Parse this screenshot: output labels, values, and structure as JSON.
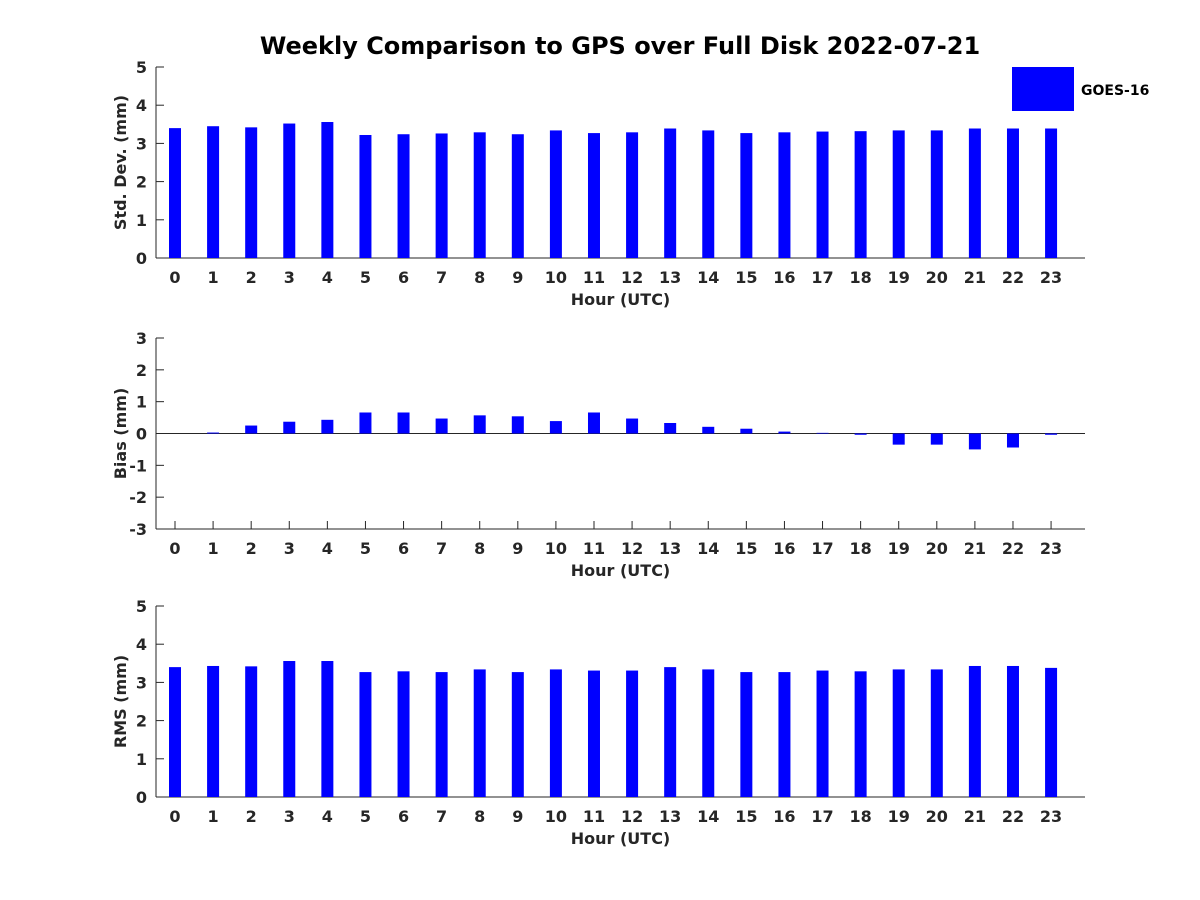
{
  "chart_data": {
    "title": "Weekly Comparison to GPS over Full Disk 2022-07-21",
    "legend": {
      "label": "GOES-16",
      "color": "#0000ff",
      "placement": "top-right"
    },
    "panels": [
      {
        "type": "bar",
        "xlabel": "Hour (UTC)",
        "ylabel": "Std. Dev. (mm)",
        "ylim": [
          0,
          5
        ],
        "yticks": [
          "0",
          "1",
          "2",
          "3",
          "4",
          "5"
        ],
        "categories": [
          "0",
          "1",
          "2",
          "3",
          "4",
          "5",
          "6",
          "7",
          "8",
          "9",
          "10",
          "11",
          "12",
          "13",
          "14",
          "15",
          "16",
          "17",
          "18",
          "19",
          "20",
          "21",
          "22",
          "23"
        ],
        "series": [
          {
            "name": "GOES-16",
            "values": [
              3.4,
              3.45,
              3.42,
              3.52,
              3.56,
              3.22,
              3.24,
              3.26,
              3.29,
              3.24,
              3.34,
              3.27,
              3.29,
              3.39,
              3.34,
              3.27,
              3.29,
              3.31,
              3.32,
              3.34,
              3.34,
              3.39,
              3.39,
              3.39
            ]
          }
        ]
      },
      {
        "type": "bar",
        "xlabel": "Hour (UTC)",
        "ylabel": "Bias (mm)",
        "ylim": [
          -3,
          3
        ],
        "yticks": [
          "-3",
          "-2",
          "-1",
          "0",
          "1",
          "2",
          "3"
        ],
        "categories": [
          "0",
          "1",
          "2",
          "3",
          "4",
          "5",
          "6",
          "7",
          "8",
          "9",
          "10",
          "11",
          "12",
          "13",
          "14",
          "15",
          "16",
          "17",
          "18",
          "19",
          "20",
          "21",
          "22",
          "23"
        ],
        "series": [
          {
            "name": "GOES-16",
            "values": [
              0.0,
              0.03,
              0.25,
              0.37,
              0.43,
              0.66,
              0.66,
              0.47,
              0.57,
              0.54,
              0.39,
              0.66,
              0.47,
              0.33,
              0.21,
              0.15,
              0.06,
              0.02,
              -0.04,
              -0.35,
              -0.35,
              -0.5,
              -0.44,
              -0.04
            ]
          }
        ]
      },
      {
        "type": "bar",
        "xlabel": "Hour (UTC)",
        "ylabel": "RMS (mm)",
        "ylim": [
          0,
          5
        ],
        "yticks": [
          "0",
          "1",
          "2",
          "3",
          "4",
          "5"
        ],
        "categories": [
          "0",
          "1",
          "2",
          "3",
          "4",
          "5",
          "6",
          "7",
          "8",
          "9",
          "10",
          "11",
          "12",
          "13",
          "14",
          "15",
          "16",
          "17",
          "18",
          "19",
          "20",
          "21",
          "22",
          "23"
        ],
        "series": [
          {
            "name": "GOES-16",
            "values": [
              3.4,
              3.43,
              3.42,
              3.56,
              3.56,
              3.27,
              3.29,
              3.27,
              3.34,
              3.27,
              3.34,
              3.31,
              3.31,
              3.4,
              3.34,
              3.27,
              3.27,
              3.31,
              3.29,
              3.34,
              3.34,
              3.43,
              3.43,
              3.38
            ]
          }
        ]
      }
    ]
  }
}
